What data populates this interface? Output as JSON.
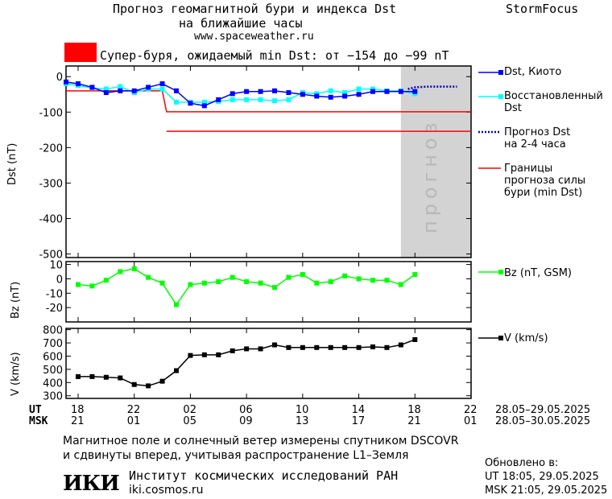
{
  "header": {
    "title_line1": "Прогноз геомагнитной бури и индекса Dst",
    "title_line2": "на ближайшие часы",
    "site": "www.spaceweather.ru",
    "brand": "StormFocus"
  },
  "alert": {
    "color": "#ff0000",
    "text": "Супер-буря, ожидаемый min Dst: от −154 до −99 nT"
  },
  "panels": {
    "dst_ylabel": "Dst (nT)",
    "bz_ylabel": "Bz (nT)",
    "v_ylabel": "V (km/s)",
    "forecast_label": "прогноз"
  },
  "legend": {
    "dst_kyoto": "Dst, Киото",
    "dst_restored_1": "Восстановленный",
    "dst_restored_2": "Dst",
    "forecast_1": "Прогноз Dst",
    "forecast_2": "на 2-4 часа",
    "bounds_1": "Границы",
    "bounds_2": "прогноза силы",
    "bounds_3": "бури (min Dst)",
    "bz": "Bz (nT, GSM)",
    "v": "V (km/s)"
  },
  "axis": {
    "ut_label": "UT",
    "msk_label": "MSK",
    "ut_ticks": [
      "18",
      "22",
      "02",
      "06",
      "10",
      "14",
      "18",
      "22"
    ],
    "msk_ticks": [
      "21",
      "01",
      "05",
      "09",
      "13",
      "17",
      "21",
      "01"
    ],
    "ut_range": "28.05–29.05.2025",
    "msk_range": "28.05–30.05.2025"
  },
  "footer": {
    "note_line1": "Магнитное поле и солнечный ветер измерены спутником DSCOVR",
    "note_line2": "и сдвинуты вперед, учитывая распространение L1–Земля",
    "updated_label": "Обновлено в:",
    "updated_ut": "UT   18:05, 29.05.2025",
    "updated_msk": "MSK 21:05, 29.05.2025",
    "logo_text": "ИКИ",
    "institute": "Институт космических исследований РАН",
    "institute_url": "iki.cosmos.ru"
  },
  "chart_data": [
    {
      "type": "line",
      "panel": "dst",
      "x_unit": "hours since 28.05 18:00 UT",
      "xlim": [
        0,
        28
      ],
      "ylim": [
        -510,
        30
      ],
      "yticks": [
        0,
        -100,
        -200,
        -300,
        -400,
        -500
      ],
      "forecast_region": [
        23,
        28
      ],
      "series": [
        {
          "name": "Dst, Киото",
          "color": "#0000ff",
          "x": [
            -1,
            0,
            1,
            2,
            3,
            4,
            5,
            6,
            7,
            8,
            9,
            10,
            11,
            12,
            13,
            14,
            15,
            16,
            17,
            18,
            19,
            20,
            21,
            22,
            23,
            24
          ],
          "y": [
            -15,
            -20,
            -30,
            -45,
            -40,
            -40,
            -30,
            -20,
            -40,
            -75,
            -82,
            -65,
            -48,
            -42,
            -42,
            -40,
            -45,
            -50,
            -55,
            -58,
            -55,
            -50,
            -42,
            -42,
            -42,
            -42
          ]
        },
        {
          "name": "Восстановленный Dst",
          "color": "#00ffff",
          "x": [
            -1,
            0,
            1,
            2,
            3,
            4,
            5,
            6,
            7,
            8,
            9,
            10,
            11,
            12,
            13,
            14,
            15,
            16,
            17,
            18,
            19,
            20,
            21,
            22,
            23,
            24
          ],
          "y": [
            -20,
            -25,
            -32,
            -35,
            -28,
            -45,
            -35,
            -35,
            -72,
            -72,
            -72,
            -70,
            -65,
            -65,
            -65,
            -68,
            -65,
            -45,
            -48,
            -40,
            -45,
            -35,
            -35,
            -40,
            -40,
            -48
          ]
        },
        {
          "name": "Прогноз Dst на 2-4 часа",
          "color": "#0000cc",
          "x": [
            23.5,
            24,
            25,
            26,
            27
          ],
          "y": [
            -35,
            -30,
            -28,
            -28,
            -28
          ]
        }
      ],
      "bounds": [
        {
          "name": "Границы прогноза силы бури (min Dst)",
          "color": "#ff0000",
          "x": [
            -1,
            6,
            6.3,
            28
          ],
          "y": [
            -40,
            -40,
            -99,
            -99
          ]
        },
        {
          "x": [
            6.3,
            28
          ],
          "y": [
            -154,
            -154
          ]
        }
      ]
    },
    {
      "type": "line",
      "panel": "bz",
      "ylim": [
        -30,
        12
      ],
      "yticks": [
        10,
        0,
        -10,
        -20
      ],
      "series": [
        {
          "name": "Bz (nT, GSM)",
          "color": "#00ff00",
          "x": [
            0,
            1,
            2,
            3,
            4,
            5,
            6,
            7,
            8,
            9,
            10,
            11,
            12,
            13,
            14,
            15,
            16,
            17,
            18,
            19,
            20,
            21,
            22,
            23,
            24
          ],
          "y": [
            -4,
            -5,
            -1,
            5,
            7,
            1,
            -3,
            -18,
            -4,
            -3,
            -2,
            1,
            -2,
            -3,
            -6,
            1,
            3,
            -3,
            -2,
            2,
            0,
            -1,
            -1,
            -4,
            3
          ]
        }
      ]
    },
    {
      "type": "line",
      "panel": "v",
      "ylim": [
        280,
        810
      ],
      "yticks": [
        800,
        700,
        600,
        500,
        400,
        300
      ],
      "series": [
        {
          "name": "V (km/s)",
          "color": "#000000",
          "x": [
            0,
            1,
            2,
            3,
            4,
            5,
            6,
            7,
            8,
            9,
            10,
            11,
            12,
            13,
            14,
            15,
            16,
            17,
            18,
            19,
            20,
            21,
            22,
            23,
            24
          ],
          "y": [
            445,
            445,
            440,
            435,
            385,
            375,
            410,
            490,
            605,
            610,
            610,
            640,
            655,
            655,
            685,
            665,
            665,
            665,
            665,
            665,
            665,
            670,
            665,
            685,
            725
          ]
        }
      ]
    }
  ]
}
